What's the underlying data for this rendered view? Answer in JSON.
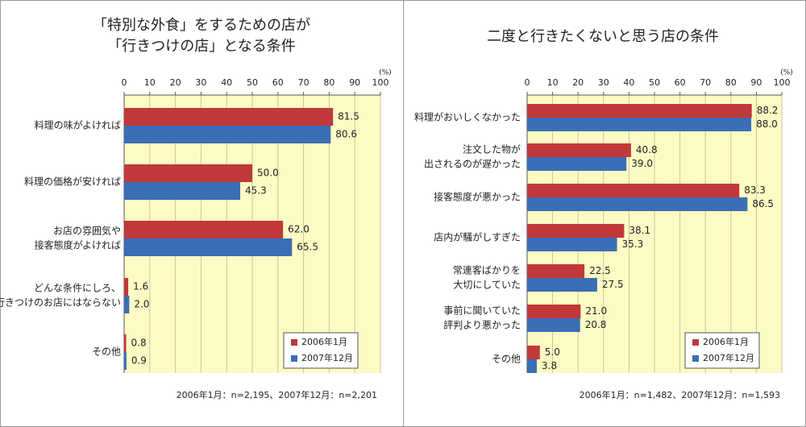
{
  "colors": {
    "series_2006": "#c0383a",
    "series_2007": "#3a6eb5",
    "plot_bg": "#fdfbc4",
    "gridline": "#c8c39a"
  },
  "chart_data": [
    {
      "type": "bar",
      "orientation": "horizontal",
      "title_lines": [
        "「特別な外食」をするための店が",
        "「行きつけの店」となる条件"
      ],
      "unit_label": "(%)",
      "xlim": [
        0,
        100
      ],
      "ticks": [
        "0",
        "10",
        "20",
        "30",
        "40",
        "50",
        "60",
        "70",
        "80",
        "90",
        "100"
      ],
      "categories": [
        [
          "料理の味がよければ"
        ],
        [
          "料理の価格が安ければ"
        ],
        [
          "お店の雰囲気や",
          "接客態度がよければ"
        ],
        [
          "どんな条件にしろ、",
          "行きつけのお店にはならない"
        ],
        [
          "その他"
        ]
      ],
      "series": [
        {
          "name": "2006年1月",
          "values": [
            81.5,
            50.0,
            62.0,
            1.6,
            0.8
          ],
          "labels": [
            "81.5",
            "50.0",
            "62.0",
            "1.6",
            "0.8"
          ]
        },
        {
          "name": "2007年12月",
          "values": [
            80.6,
            45.3,
            65.5,
            2.0,
            0.9
          ],
          "labels": [
            "80.6",
            "45.3",
            "65.5",
            "2.0",
            "0.9"
          ]
        }
      ],
      "legend": [
        "2006年1月",
        "2007年12月"
      ],
      "legend_position": "bottom-right",
      "footnote": "2006年1月：n=2,195、2007年12月：n=2,201"
    },
    {
      "type": "bar",
      "orientation": "horizontal",
      "title_lines": [
        "二度と行きたくないと思う店の条件"
      ],
      "unit_label": "(%)",
      "xlim": [
        0,
        100
      ],
      "ticks": [
        "0",
        "10",
        "20",
        "30",
        "40",
        "50",
        "60",
        "70",
        "80",
        "90",
        "100"
      ],
      "categories": [
        [
          "料理がおいしくなかった"
        ],
        [
          "注文した物が",
          "出されるのが遅かった"
        ],
        [
          "接客態度が悪かった"
        ],
        [
          "店内が騒がしすぎた"
        ],
        [
          "常連客ばかりを",
          "大切にしていた"
        ],
        [
          "事前に聞いていた",
          "評判より悪かった"
        ],
        [
          "その他"
        ]
      ],
      "series": [
        {
          "name": "2006年1月",
          "values": [
            88.2,
            40.8,
            83.3,
            38.1,
            22.5,
            21.0,
            5.0
          ],
          "labels": [
            "88.2",
            "40.8",
            "83.3",
            "38.1",
            "22.5",
            "21.0",
            "5.0"
          ]
        },
        {
          "name": "2007年12月",
          "values": [
            88.0,
            39.0,
            86.5,
            35.3,
            27.5,
            20.8,
            3.8
          ],
          "labels": [
            "88.0",
            "39.0",
            "86.5",
            "35.3",
            "27.5",
            "20.8",
            "3.8"
          ]
        }
      ],
      "legend": [
        "2006年1月",
        "2007年12月"
      ],
      "legend_position": "bottom-right",
      "footnote": "2006年1月：n=1,482、2007年12月：n=1,593"
    }
  ]
}
